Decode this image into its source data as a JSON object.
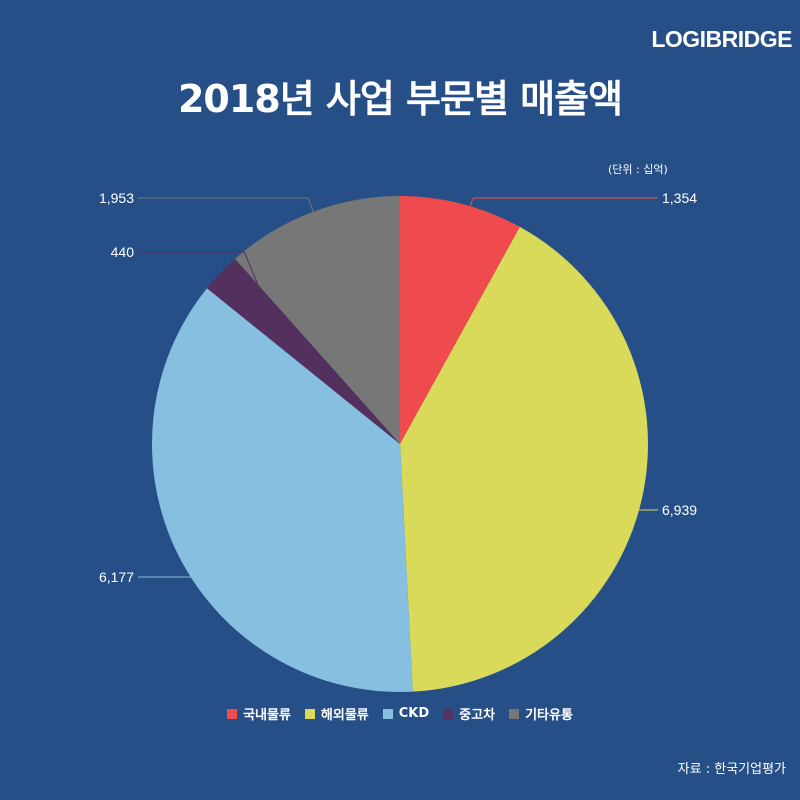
{
  "brand": "LOGIBRIDGE",
  "title": "2018년 사업 부문별 매출액",
  "unit_note": "(단위 : 십억)",
  "source": "자료 : 한국기업평가",
  "chart_data": {
    "type": "pie",
    "title": "2018년 사업 부문별 매출액",
    "categories": [
      "국내물류",
      "해외물류",
      "CKD",
      "중고차",
      "기타유통"
    ],
    "values": [
      1354,
      6939,
      6177,
      440,
      1953
    ],
    "value_labels": [
      "1,354",
      "6,939",
      "6,177",
      "440",
      "1,953"
    ],
    "colors": [
      "#ef4b4e",
      "#d9da5a",
      "#86bfe0",
      "#54305f",
      "#777777"
    ],
    "start_angle_deg": 0,
    "direction": "clockwise",
    "legend_position": "bottom"
  }
}
